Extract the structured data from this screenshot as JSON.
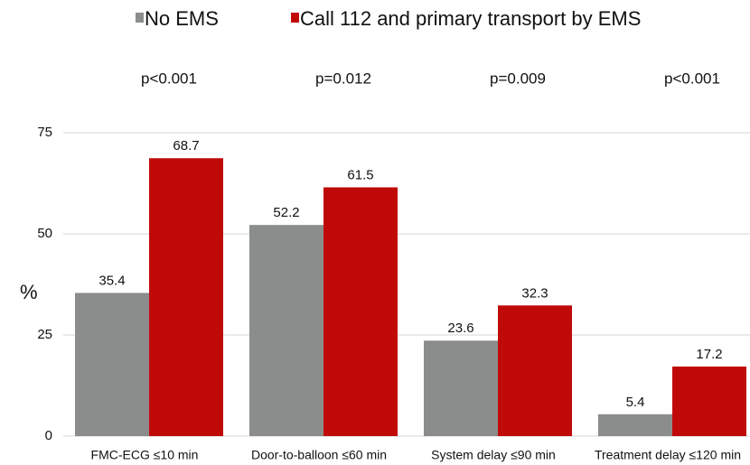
{
  "chart_data": {
    "type": "bar",
    "categories": [
      "FMC-ECG ≤10 min",
      "Door-to-balloon ≤60 min",
      "System delay ≤90 min",
      "Treatment delay ≤120 min"
    ],
    "series": [
      {
        "name": "No EMS",
        "color": "#8a8d8c",
        "values": [
          35.4,
          52.2,
          23.6,
          5.4
        ]
      },
      {
        "name": "Call 112 and primary transport by EMS",
        "color": "#c00a0a",
        "values": [
          68.7,
          61.5,
          32.3,
          17.2
        ]
      }
    ],
    "annotations": [
      "p<0.001",
      "p=0.012",
      "p=0.009",
      "p<0.001"
    ],
    "ylabel": "%",
    "ylim": [
      0,
      75
    ],
    "yticks": [
      0,
      25,
      50,
      75
    ],
    "grid": true
  }
}
